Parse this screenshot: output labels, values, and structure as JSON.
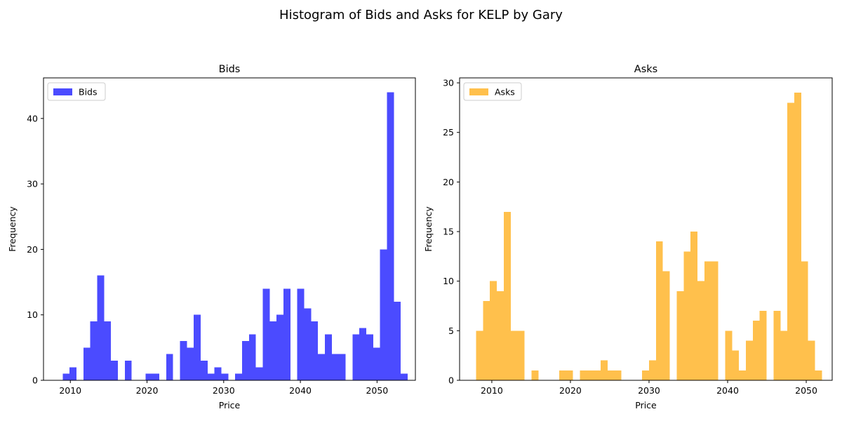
{
  "figure": {
    "suptitle": "Histogram of Bids and Asks for KELP by Gary"
  },
  "chart_data": [
    {
      "type": "bar",
      "subtype": "histogram",
      "title": "Bids",
      "xlabel": "Price",
      "ylabel": "Frequency",
      "legend": [
        "Bids"
      ],
      "legend_position": "upper-left",
      "color": "#4B4BFF",
      "xlim": [
        2006.5,
        2055.0
      ],
      "ylim": [
        0,
        46.2
      ],
      "xticks": [
        2010,
        2020,
        2030,
        2040,
        2050
      ],
      "yticks": [
        0,
        10,
        20,
        30,
        40
      ],
      "bin_width": 0.9,
      "bins": [
        {
          "x": 2009.0,
          "count": 1
        },
        {
          "x": 2009.9,
          "count": 2
        },
        {
          "x": 2010.8,
          "count": 0
        },
        {
          "x": 2011.7,
          "count": 5
        },
        {
          "x": 2012.6,
          "count": 9
        },
        {
          "x": 2013.5,
          "count": 16
        },
        {
          "x": 2014.4,
          "count": 9
        },
        {
          "x": 2015.3,
          "count": 3
        },
        {
          "x": 2016.2,
          "count": 0
        },
        {
          "x": 2017.1,
          "count": 3
        },
        {
          "x": 2018.0,
          "count": 0
        },
        {
          "x": 2018.9,
          "count": 0
        },
        {
          "x": 2019.8,
          "count": 1
        },
        {
          "x": 2020.7,
          "count": 1
        },
        {
          "x": 2021.6,
          "count": 0
        },
        {
          "x": 2022.5,
          "count": 4
        },
        {
          "x": 2023.4,
          "count": 0
        },
        {
          "x": 2024.3,
          "count": 6
        },
        {
          "x": 2025.2,
          "count": 5
        },
        {
          "x": 2026.1,
          "count": 10
        },
        {
          "x": 2027.0,
          "count": 3
        },
        {
          "x": 2027.9,
          "count": 1
        },
        {
          "x": 2028.8,
          "count": 2
        },
        {
          "x": 2029.7,
          "count": 1
        },
        {
          "x": 2030.6,
          "count": 0
        },
        {
          "x": 2031.5,
          "count": 1
        },
        {
          "x": 2032.4,
          "count": 6
        },
        {
          "x": 2033.3,
          "count": 7
        },
        {
          "x": 2034.2,
          "count": 2
        },
        {
          "x": 2035.1,
          "count": 14
        },
        {
          "x": 2036.0,
          "count": 9
        },
        {
          "x": 2036.9,
          "count": 10
        },
        {
          "x": 2037.8,
          "count": 14
        },
        {
          "x": 2038.7,
          "count": 0
        },
        {
          "x": 2039.6,
          "count": 14
        },
        {
          "x": 2040.5,
          "count": 11
        },
        {
          "x": 2041.4,
          "count": 9
        },
        {
          "x": 2042.3,
          "count": 4
        },
        {
          "x": 2043.2,
          "count": 7
        },
        {
          "x": 2044.1,
          "count": 4
        },
        {
          "x": 2045.0,
          "count": 4
        },
        {
          "x": 2045.9,
          "count": 0
        },
        {
          "x": 2046.8,
          "count": 7
        },
        {
          "x": 2047.7,
          "count": 8
        },
        {
          "x": 2048.6,
          "count": 7
        },
        {
          "x": 2049.5,
          "count": 5
        },
        {
          "x": 2050.4,
          "count": 20
        },
        {
          "x": 2051.3,
          "count": 44
        },
        {
          "x": 2052.2,
          "count": 12
        },
        {
          "x": 2053.1,
          "count": 1
        }
      ]
    },
    {
      "type": "bar",
      "subtype": "histogram",
      "title": "Asks",
      "xlabel": "Price",
      "ylabel": "Frequency",
      "legend": [
        "Asks"
      ],
      "legend_position": "upper-left",
      "color": "#FFC04C",
      "xlim": [
        2005.9,
        2053.3
      ],
      "ylim": [
        0,
        30.5
      ],
      "xticks": [
        2010,
        2020,
        2030,
        2040,
        2050
      ],
      "yticks": [
        0,
        5,
        10,
        15,
        20,
        25,
        30
      ],
      "bin_width": 0.88,
      "bins": [
        {
          "x": 2008.0,
          "count": 5
        },
        {
          "x": 2008.88,
          "count": 8
        },
        {
          "x": 2009.76,
          "count": 10
        },
        {
          "x": 2010.64,
          "count": 9
        },
        {
          "x": 2011.52,
          "count": 17
        },
        {
          "x": 2012.4,
          "count": 5
        },
        {
          "x": 2013.28,
          "count": 5
        },
        {
          "x": 2014.16,
          "count": 0
        },
        {
          "x": 2015.04,
          "count": 1
        },
        {
          "x": 2015.92,
          "count": 0
        },
        {
          "x": 2016.8,
          "count": 0
        },
        {
          "x": 2017.68,
          "count": 0
        },
        {
          "x": 2018.56,
          "count": 1
        },
        {
          "x": 2019.44,
          "count": 1
        },
        {
          "x": 2020.32,
          "count": 0
        },
        {
          "x": 2021.2,
          "count": 1
        },
        {
          "x": 2022.08,
          "count": 1
        },
        {
          "x": 2022.96,
          "count": 1
        },
        {
          "x": 2023.84,
          "count": 2
        },
        {
          "x": 2024.72,
          "count": 1
        },
        {
          "x": 2025.6,
          "count": 1
        },
        {
          "x": 2026.48,
          "count": 0
        },
        {
          "x": 2027.36,
          "count": 0
        },
        {
          "x": 2028.24,
          "count": 0
        },
        {
          "x": 2029.12,
          "count": 1
        },
        {
          "x": 2030.0,
          "count": 2
        },
        {
          "x": 2030.88,
          "count": 14
        },
        {
          "x": 2031.76,
          "count": 11
        },
        {
          "x": 2032.64,
          "count": 0
        },
        {
          "x": 2033.52,
          "count": 9
        },
        {
          "x": 2034.4,
          "count": 13
        },
        {
          "x": 2035.28,
          "count": 15
        },
        {
          "x": 2036.16,
          "count": 10
        },
        {
          "x": 2037.04,
          "count": 12
        },
        {
          "x": 2037.92,
          "count": 12
        },
        {
          "x": 2038.8,
          "count": 0
        },
        {
          "x": 2039.68,
          "count": 5
        },
        {
          "x": 2040.56,
          "count": 3
        },
        {
          "x": 2041.44,
          "count": 1
        },
        {
          "x": 2042.32,
          "count": 4
        },
        {
          "x": 2043.2,
          "count": 6
        },
        {
          "x": 2044.08,
          "count": 7
        },
        {
          "x": 2044.96,
          "count": 0
        },
        {
          "x": 2045.84,
          "count": 7
        },
        {
          "x": 2046.72,
          "count": 5
        },
        {
          "x": 2047.6,
          "count": 28
        },
        {
          "x": 2048.48,
          "count": 29
        },
        {
          "x": 2049.36,
          "count": 12
        },
        {
          "x": 2050.24,
          "count": 4
        },
        {
          "x": 2051.12,
          "count": 1
        }
      ]
    }
  ]
}
